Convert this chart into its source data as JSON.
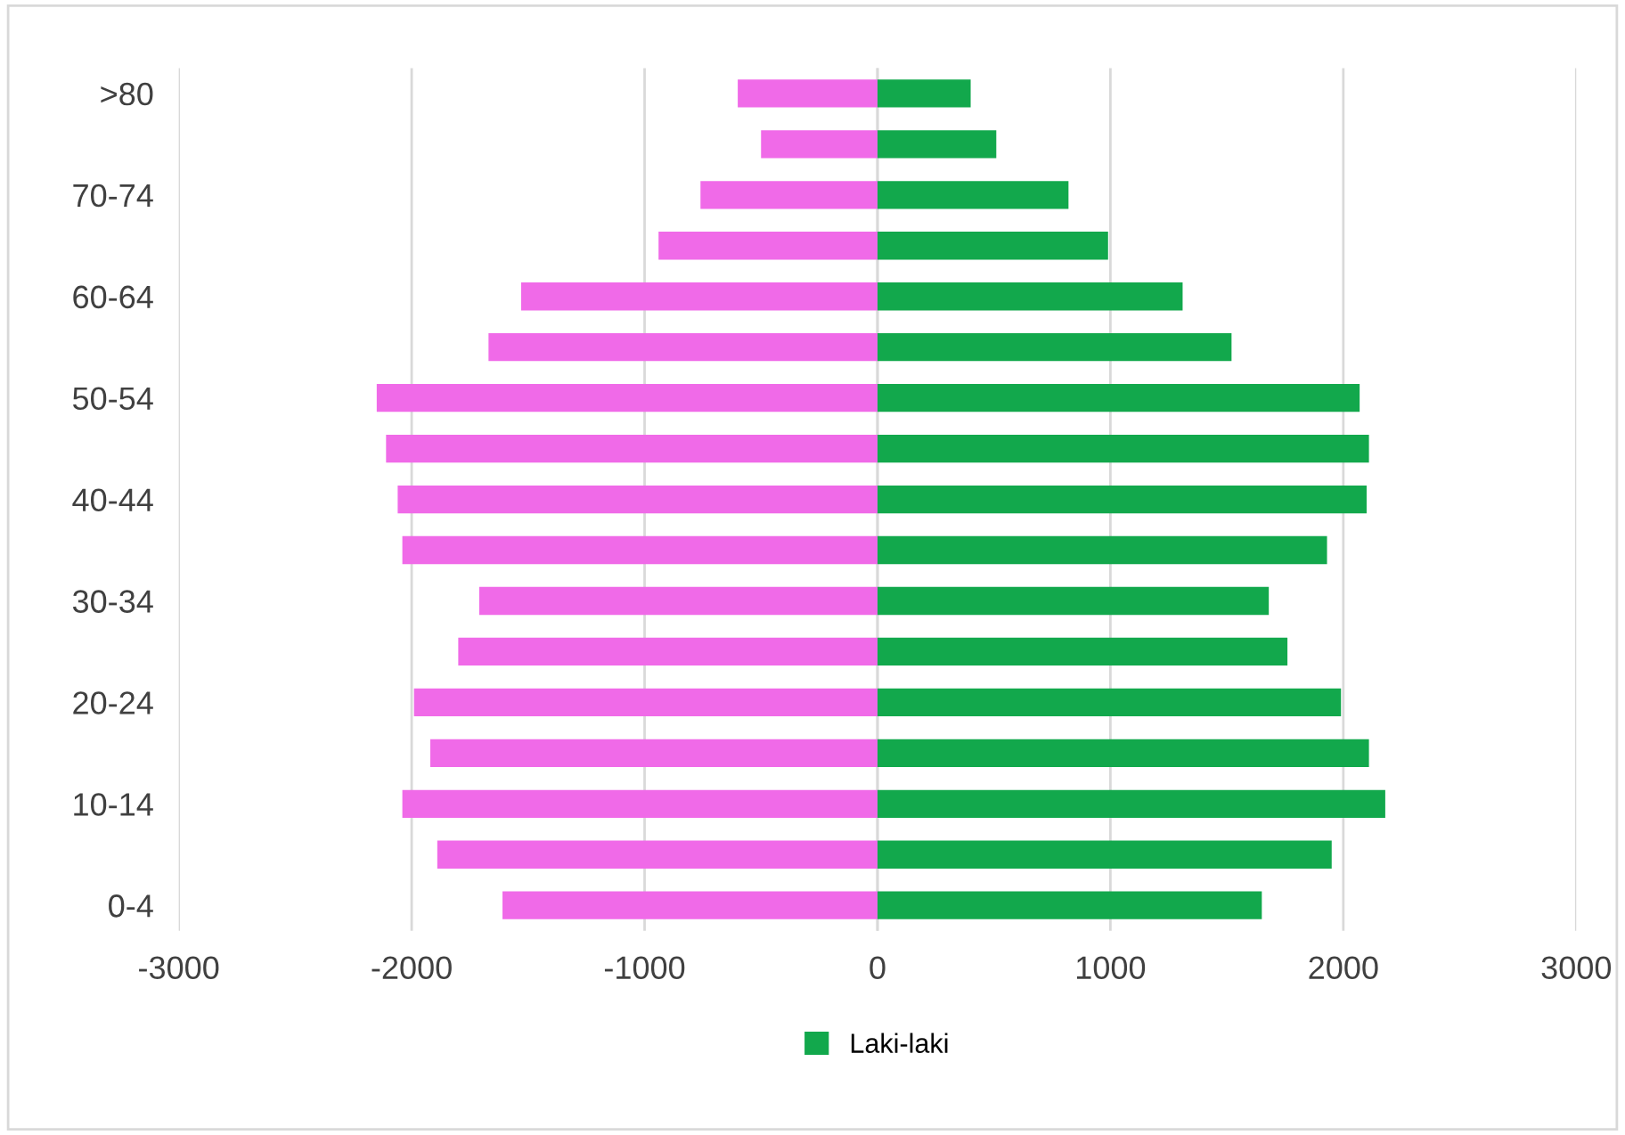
{
  "chart_data": {
    "type": "bar",
    "orientation": "horizontal",
    "categories": [
      ">80",
      null,
      "70-74",
      null,
      "60-64",
      null,
      "50-54",
      null,
      "40-44",
      null,
      "30-34",
      null,
      "20-24",
      null,
      "10-14",
      null,
      "0-4"
    ],
    "series": [
      {
        "color": "#f06ae8",
        "values": [
          -600,
          -500,
          -760,
          -940,
          -1530,
          -1670,
          -2150,
          -2110,
          -2060,
          -2040,
          -1710,
          -1800,
          -1990,
          -1920,
          -2040,
          -1890,
          -1610
        ]
      },
      {
        "name": "Laki-laki",
        "color": "#12a84c",
        "values": [
          400,
          510,
          820,
          990,
          1310,
          1520,
          2070,
          2110,
          2100,
          1930,
          1680,
          1760,
          1990,
          2110,
          2180,
          1950,
          1650
        ]
      }
    ],
    "xlim": [
      -3000,
      3000
    ],
    "xticks": [
      -3000,
      -2000,
      -1000,
      0,
      1000,
      2000,
      3000
    ],
    "stacked": true,
    "grid": "x",
    "legend": "bottom"
  }
}
